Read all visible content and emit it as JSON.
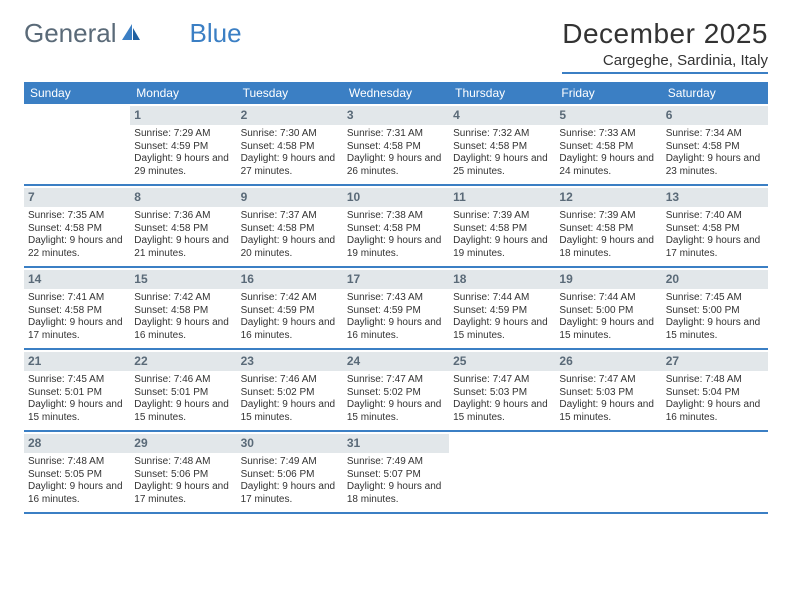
{
  "logo": {
    "text1": "General",
    "text2": "Blue"
  },
  "title": "December 2025",
  "location": "Cargeghe, Sardinia, Italy",
  "colors": {
    "accent": "#3b7fc4",
    "header_gray": "#5a6a78",
    "daynum_bg": "#e2e7ea",
    "text": "#333333",
    "background": "#ffffff"
  },
  "typography": {
    "title_fontsize": 28,
    "location_fontsize": 15,
    "weekday_fontsize": 12,
    "daynum_fontsize": 12,
    "cell_fontsize": 10,
    "logo_fontsize": 26
  },
  "weekdays": [
    "Sunday",
    "Monday",
    "Tuesday",
    "Wednesday",
    "Thursday",
    "Friday",
    "Saturday"
  ],
  "weeks": [
    [
      null,
      {
        "n": "1",
        "sr": "Sunrise: 7:29 AM",
        "ss": "Sunset: 4:59 PM",
        "dl": "Daylight: 9 hours and 29 minutes."
      },
      {
        "n": "2",
        "sr": "Sunrise: 7:30 AM",
        "ss": "Sunset: 4:58 PM",
        "dl": "Daylight: 9 hours and 27 minutes."
      },
      {
        "n": "3",
        "sr": "Sunrise: 7:31 AM",
        "ss": "Sunset: 4:58 PM",
        "dl": "Daylight: 9 hours and 26 minutes."
      },
      {
        "n": "4",
        "sr": "Sunrise: 7:32 AM",
        "ss": "Sunset: 4:58 PM",
        "dl": "Daylight: 9 hours and 25 minutes."
      },
      {
        "n": "5",
        "sr": "Sunrise: 7:33 AM",
        "ss": "Sunset: 4:58 PM",
        "dl": "Daylight: 9 hours and 24 minutes."
      },
      {
        "n": "6",
        "sr": "Sunrise: 7:34 AM",
        "ss": "Sunset: 4:58 PM",
        "dl": "Daylight: 9 hours and 23 minutes."
      }
    ],
    [
      {
        "n": "7",
        "sr": "Sunrise: 7:35 AM",
        "ss": "Sunset: 4:58 PM",
        "dl": "Daylight: 9 hours and 22 minutes."
      },
      {
        "n": "8",
        "sr": "Sunrise: 7:36 AM",
        "ss": "Sunset: 4:58 PM",
        "dl": "Daylight: 9 hours and 21 minutes."
      },
      {
        "n": "9",
        "sr": "Sunrise: 7:37 AM",
        "ss": "Sunset: 4:58 PM",
        "dl": "Daylight: 9 hours and 20 minutes."
      },
      {
        "n": "10",
        "sr": "Sunrise: 7:38 AM",
        "ss": "Sunset: 4:58 PM",
        "dl": "Daylight: 9 hours and 19 minutes."
      },
      {
        "n": "11",
        "sr": "Sunrise: 7:39 AM",
        "ss": "Sunset: 4:58 PM",
        "dl": "Daylight: 9 hours and 19 minutes."
      },
      {
        "n": "12",
        "sr": "Sunrise: 7:39 AM",
        "ss": "Sunset: 4:58 PM",
        "dl": "Daylight: 9 hours and 18 minutes."
      },
      {
        "n": "13",
        "sr": "Sunrise: 7:40 AM",
        "ss": "Sunset: 4:58 PM",
        "dl": "Daylight: 9 hours and 17 minutes."
      }
    ],
    [
      {
        "n": "14",
        "sr": "Sunrise: 7:41 AM",
        "ss": "Sunset: 4:58 PM",
        "dl": "Daylight: 9 hours and 17 minutes."
      },
      {
        "n": "15",
        "sr": "Sunrise: 7:42 AM",
        "ss": "Sunset: 4:58 PM",
        "dl": "Daylight: 9 hours and 16 minutes."
      },
      {
        "n": "16",
        "sr": "Sunrise: 7:42 AM",
        "ss": "Sunset: 4:59 PM",
        "dl": "Daylight: 9 hours and 16 minutes."
      },
      {
        "n": "17",
        "sr": "Sunrise: 7:43 AM",
        "ss": "Sunset: 4:59 PM",
        "dl": "Daylight: 9 hours and 16 minutes."
      },
      {
        "n": "18",
        "sr": "Sunrise: 7:44 AM",
        "ss": "Sunset: 4:59 PM",
        "dl": "Daylight: 9 hours and 15 minutes."
      },
      {
        "n": "19",
        "sr": "Sunrise: 7:44 AM",
        "ss": "Sunset: 5:00 PM",
        "dl": "Daylight: 9 hours and 15 minutes."
      },
      {
        "n": "20",
        "sr": "Sunrise: 7:45 AM",
        "ss": "Sunset: 5:00 PM",
        "dl": "Daylight: 9 hours and 15 minutes."
      }
    ],
    [
      {
        "n": "21",
        "sr": "Sunrise: 7:45 AM",
        "ss": "Sunset: 5:01 PM",
        "dl": "Daylight: 9 hours and 15 minutes."
      },
      {
        "n": "22",
        "sr": "Sunrise: 7:46 AM",
        "ss": "Sunset: 5:01 PM",
        "dl": "Daylight: 9 hours and 15 minutes."
      },
      {
        "n": "23",
        "sr": "Sunrise: 7:46 AM",
        "ss": "Sunset: 5:02 PM",
        "dl": "Daylight: 9 hours and 15 minutes."
      },
      {
        "n": "24",
        "sr": "Sunrise: 7:47 AM",
        "ss": "Sunset: 5:02 PM",
        "dl": "Daylight: 9 hours and 15 minutes."
      },
      {
        "n": "25",
        "sr": "Sunrise: 7:47 AM",
        "ss": "Sunset: 5:03 PM",
        "dl": "Daylight: 9 hours and 15 minutes."
      },
      {
        "n": "26",
        "sr": "Sunrise: 7:47 AM",
        "ss": "Sunset: 5:03 PM",
        "dl": "Daylight: 9 hours and 15 minutes."
      },
      {
        "n": "27",
        "sr": "Sunrise: 7:48 AM",
        "ss": "Sunset: 5:04 PM",
        "dl": "Daylight: 9 hours and 16 minutes."
      }
    ],
    [
      {
        "n": "28",
        "sr": "Sunrise: 7:48 AM",
        "ss": "Sunset: 5:05 PM",
        "dl": "Daylight: 9 hours and 16 minutes."
      },
      {
        "n": "29",
        "sr": "Sunrise: 7:48 AM",
        "ss": "Sunset: 5:06 PM",
        "dl": "Daylight: 9 hours and 17 minutes."
      },
      {
        "n": "30",
        "sr": "Sunrise: 7:49 AM",
        "ss": "Sunset: 5:06 PM",
        "dl": "Daylight: 9 hours and 17 minutes."
      },
      {
        "n": "31",
        "sr": "Sunrise: 7:49 AM",
        "ss": "Sunset: 5:07 PM",
        "dl": "Daylight: 9 hours and 18 minutes."
      },
      null,
      null,
      null
    ]
  ]
}
